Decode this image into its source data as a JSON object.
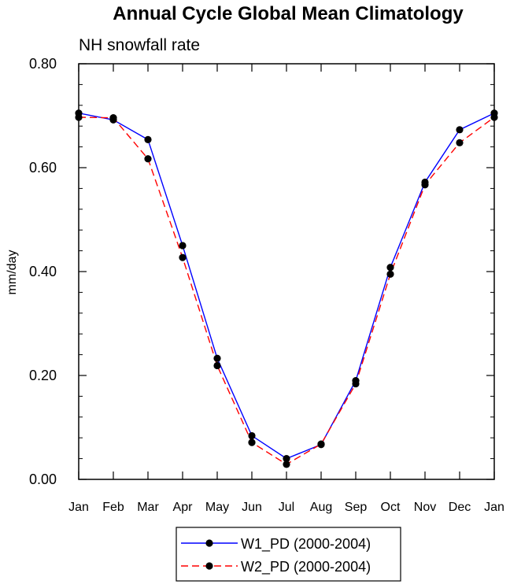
{
  "chart_data": {
    "type": "line",
    "title": "Annual Cycle Global Mean Climatology",
    "subtitle": "NH snowfall rate",
    "xlabel": "",
    "ylabel": "mm/day",
    "categories": [
      "Jan",
      "Feb",
      "Mar",
      "Apr",
      "May",
      "Jun",
      "Jul",
      "Aug",
      "Sep",
      "Oct",
      "Nov",
      "Dec",
      "Jan"
    ],
    "ylim": [
      0.0,
      0.8
    ],
    "yticks": [
      "0.00",
      "0.20",
      "0.40",
      "0.60",
      "0.80"
    ],
    "ytick_values": [
      0.0,
      0.2,
      0.4,
      0.6,
      0.8
    ],
    "minor_tick_step": 0.04,
    "legend_position": "bottom-center",
    "series": [
      {
        "name": "W1_PD (2000-2004)",
        "color": "#0000ff",
        "style": "solid",
        "values": [
          0.705,
          0.692,
          0.654,
          0.45,
          0.233,
          0.084,
          0.04,
          0.067,
          0.19,
          0.408,
          0.572,
          0.673,
          0.705
        ]
      },
      {
        "name": "W2_PD (2000-2004)",
        "color": "#ff0000",
        "style": "dashed",
        "values": [
          0.697,
          0.696,
          0.617,
          0.427,
          0.219,
          0.071,
          0.029,
          0.068,
          0.184,
          0.395,
          0.567,
          0.648,
          0.697
        ]
      }
    ]
  }
}
